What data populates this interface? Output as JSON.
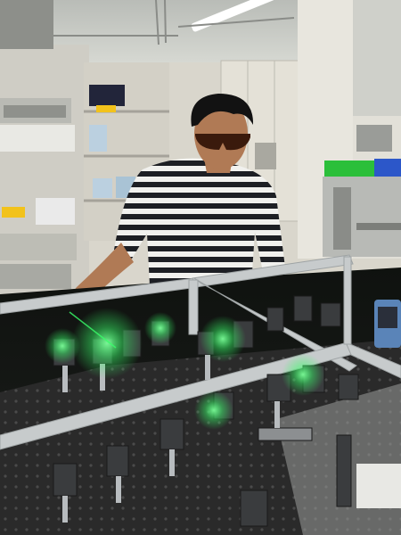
{
  "scene": {
    "subject": "person-adjusting-optics",
    "colors": {
      "ceiling": "#c9ccc7",
      "wall": "#d9d6cc",
      "cabinet": "#e4e1d7",
      "table_surface": "#2a2a2a",
      "breadboard_hole": "#4a4a4a",
      "enclosure_frame": "#c7cbcc",
      "laser_glow": "#39ff6a",
      "shirt_stripe_dark": "#1d1f24",
      "shirt_stripe_light": "#f1f1ee",
      "skin": "#b07a55",
      "hair": "#121212",
      "goggles": "#3a1a0c",
      "green_tray": "#2bbf3a",
      "blue_tray": "#2c57c9",
      "yellow_item": "#f2c21b"
    }
  }
}
